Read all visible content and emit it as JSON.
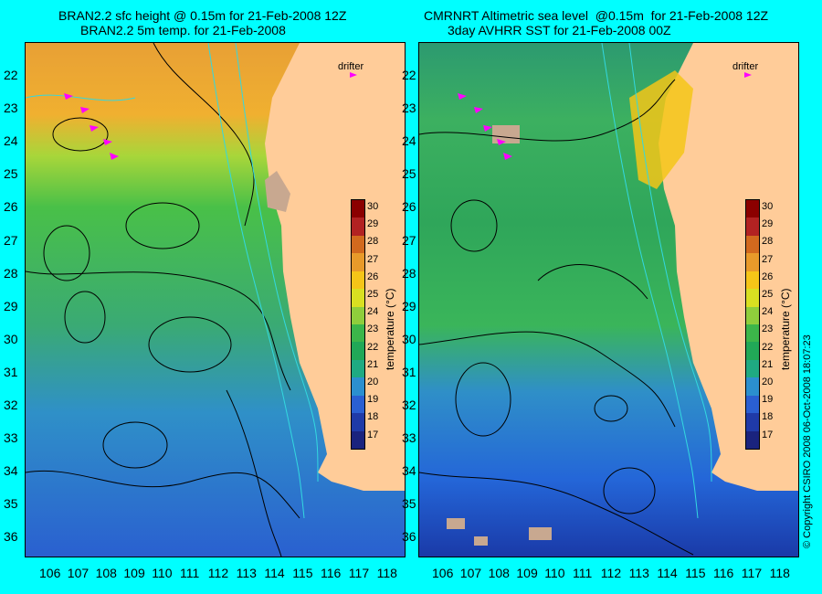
{
  "left_panel": {
    "title_line1": "BRAN2.2 sfc height @ 0.15m for 21-Feb-2008 12Z",
    "title_line2": "BRAN2.2 5m temp. for 21-Feb-2008"
  },
  "right_panel": {
    "title_line1": "CMRNRT Altimetric sea level  @0.15m  for 21-Feb-2008 12Z",
    "title_line2": "3day AVHRR SST for 21-Feb-2008 00Z"
  },
  "legend": {
    "drifter_label": "drifter"
  },
  "axes": {
    "lat_labels": [
      "22",
      "23",
      "24",
      "25",
      "26",
      "27",
      "28",
      "29",
      "30",
      "31",
      "32",
      "33",
      "34",
      "35",
      "36"
    ],
    "lon_labels": [
      "106",
      "107",
      "108",
      "109",
      "110",
      "111",
      "112",
      "113",
      "114",
      "115",
      "116",
      "117",
      "118"
    ]
  },
  "colorbar": {
    "title": "temperature (°C)",
    "ticks": [
      "30",
      "29",
      "28",
      "27",
      "26",
      "25",
      "24",
      "23",
      "22",
      "21",
      "20",
      "19",
      "18",
      "17"
    ],
    "colors": [
      "#8b0000",
      "#b22222",
      "#d2691e",
      "#e89a2a",
      "#f5c518",
      "#d9e021",
      "#8fce3c",
      "#3cb64a",
      "#21a857",
      "#1faa82",
      "#2b8fcf",
      "#2a5fd2",
      "#1f3aa8",
      "#1a237e"
    ]
  },
  "copyright": "© Copyright CSIRO 2008    06-Oct-2008 18:07:23",
  "colors": {
    "land": "#ffcc99",
    "background": "#00ffff",
    "drifter": "#ff00ff"
  }
}
